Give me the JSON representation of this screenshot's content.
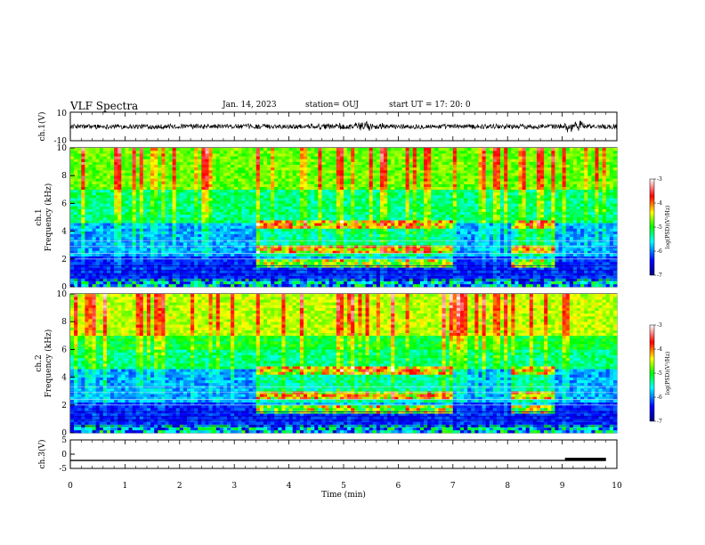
{
  "header": {
    "title": "VLF Spectra",
    "date": "Jan. 14, 2023",
    "station": "station= OUJ",
    "start": "start  UT  =   17: 20: 0"
  },
  "chart_data": [
    {
      "id": "ch1-waveform",
      "type": "line",
      "ylabel": "ch.1(V)",
      "ylim": [
        -10,
        10
      ],
      "yticks": [
        "10",
        "-10"
      ],
      "xlim": [
        0,
        10
      ],
      "description_series": "broadband noise waveform around ~0 V with bursts near 5.3 and 9.2 min"
    },
    {
      "id": "ch1-spectrogram",
      "type": "heatmap",
      "ylabel_line1": "ch.1",
      "ylabel_line2": "Frequency (kHz)",
      "ylim": [
        0,
        10
      ],
      "yticks": [
        "0",
        "2",
        "4",
        "6",
        "8",
        "10"
      ],
      "xlim": [
        0,
        10
      ],
      "colorbar": {
        "label": "log(PSD)(V²/Hz)",
        "ticks": [
          "-3",
          "-4",
          "-5",
          "-6",
          "-7"
        ],
        "range": [
          -7,
          -3
        ]
      }
    },
    {
      "id": "ch2-spectrogram",
      "type": "heatmap",
      "ylabel_line1": "ch.2",
      "ylabel_line2": "Frequency (kHz)",
      "ylim": [
        0,
        10
      ],
      "yticks": [
        "0",
        "2",
        "4",
        "6",
        "8",
        "10"
      ],
      "xlim": [
        0,
        10
      ],
      "colorbar": {
        "label": "log(PSD)(V²/Hz)",
        "ticks": [
          "-3",
          "-4",
          "-5",
          "-6",
          "-7"
        ],
        "range": [
          -7,
          -3
        ]
      }
    },
    {
      "id": "ch3-trace",
      "type": "line",
      "ylabel": "ch.3(V)",
      "ylim": [
        -5,
        5
      ],
      "yticks": [
        "5",
        "0",
        "-5"
      ],
      "xlim": [
        0,
        10
      ],
      "x": [
        0,
        9.1,
        9.1,
        9.8
      ],
      "y": [
        -2.2,
        -2.2,
        -2.2,
        -2.2
      ],
      "thick_segment_x": [
        9.05,
        9.8
      ]
    }
  ],
  "xaxis": {
    "label": "Time  (min)",
    "ticks": [
      "0",
      "1",
      "2",
      "3",
      "4",
      "5",
      "6",
      "7",
      "8",
      "9",
      "10"
    ]
  }
}
